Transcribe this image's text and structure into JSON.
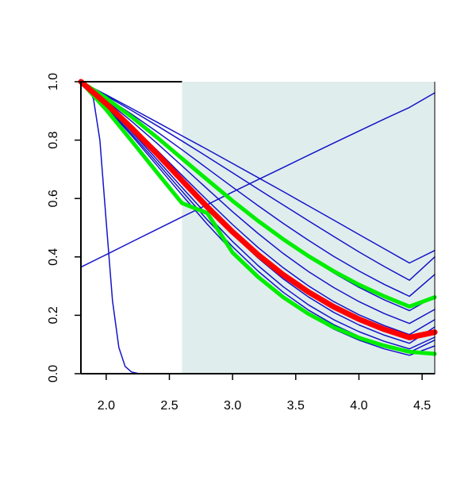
{
  "chart_data": {
    "type": "line",
    "title": "",
    "xlabel": "",
    "ylabel": "",
    "xlim": [
      1.8,
      4.6
    ],
    "ylim": [
      0.0,
      1.0
    ],
    "grid": false,
    "x_ticks": [
      "2.0",
      "2.5",
      "3.0",
      "3.5",
      "4.0",
      "4.5"
    ],
    "y_ticks": [
      "0.0",
      "0.2",
      "0.4",
      "0.6",
      "0.8",
      "1.0"
    ],
    "shaded_region": {
      "x_from": 2.6,
      "x_to": 4.6,
      "color": "#e0eded"
    },
    "colors": {
      "blue": "#1414c8",
      "red": "#ff0000",
      "green": "#00ee00",
      "axis": "#000000"
    },
    "x": [
      1.8,
      2.0,
      2.2,
      2.4,
      2.6,
      2.8,
      3.0,
      3.2,
      3.4,
      3.6,
      3.8,
      4.0,
      4.2,
      4.4,
      4.6
    ],
    "series": [
      {
        "color": "blue",
        "width": 1.5,
        "values": [
          1.0,
          0.955,
          0.909,
          0.862,
          0.815,
          0.768,
          0.72,
          0.672,
          0.624,
          0.575,
          0.526,
          0.477,
          0.428,
          0.379,
          0.422
        ]
      },
      {
        "color": "blue",
        "width": 1.5,
        "values": [
          1.0,
          0.952,
          0.902,
          0.85,
          0.797,
          0.743,
          0.688,
          0.633,
          0.578,
          0.524,
          0.47,
          0.417,
          0.367,
          0.32,
          0.4
        ]
      },
      {
        "color": "blue",
        "width": 1.5,
        "values": [
          1.0,
          0.946,
          0.889,
          0.829,
          0.767,
          0.703,
          0.639,
          0.576,
          0.515,
          0.457,
          0.402,
          0.352,
          0.306,
          0.265,
          0.34
        ]
      },
      {
        "color": "blue",
        "width": 1.5,
        "values": [
          1.0,
          0.94,
          0.876,
          0.808,
          0.737,
          0.665,
          0.594,
          0.525,
          0.46,
          0.4,
          0.345,
          0.296,
          0.253,
          0.216,
          0.265
        ]
      },
      {
        "color": "blue",
        "width": 1.5,
        "values": [
          1.0,
          0.935,
          0.865,
          0.79,
          0.712,
          0.633,
          0.555,
          0.481,
          0.412,
          0.35,
          0.295,
          0.247,
          0.206,
          0.172,
          0.22
        ]
      },
      {
        "color": "blue",
        "width": 1.5,
        "values": [
          1.0,
          0.928,
          0.85,
          0.766,
          0.68,
          0.594,
          0.511,
          0.433,
          0.363,
          0.301,
          0.247,
          0.202,
          0.165,
          0.134,
          0.185
        ]
      },
      {
        "color": "blue",
        "width": 1.5,
        "values": [
          1.0,
          0.922,
          0.838,
          0.748,
          0.656,
          0.565,
          0.478,
          0.397,
          0.325,
          0.263,
          0.21,
          0.167,
          0.132,
          0.104,
          0.16
        ]
      },
      {
        "color": "blue",
        "width": 1.5,
        "values": [
          1.0,
          0.918,
          0.829,
          0.734,
          0.638,
          0.543,
          0.453,
          0.371,
          0.298,
          0.236,
          0.185,
          0.144,
          0.111,
          0.085,
          0.125
        ]
      },
      {
        "color": "blue",
        "width": 1.5,
        "values": [
          1.0,
          0.915,
          0.822,
          0.724,
          0.625,
          0.527,
          0.435,
          0.352,
          0.279,
          0.218,
          0.168,
          0.128,
          0.097,
          0.073,
          0.115
        ]
      },
      {
        "color": "blue",
        "width": 1.5,
        "values": [
          1.0,
          0.912,
          0.816,
          0.714,
          0.612,
          0.512,
          0.419,
          0.336,
          0.263,
          0.202,
          0.153,
          0.115,
          0.085,
          0.063,
          0.095
        ]
      },
      {
        "color": "blue",
        "width": 1.5,
        "values": [
          0.365,
          0.408,
          0.451,
          0.494,
          0.537,
          0.579,
          0.622,
          0.664,
          0.706,
          0.748,
          0.79,
          0.831,
          0.872,
          0.912,
          0.962
        ]
      },
      {
        "color": "green",
        "width": 5,
        "values": [
          1.0,
          0.944,
          0.88,
          0.81,
          0.737,
          0.664,
          0.592,
          0.524,
          0.461,
          0.403,
          0.351,
          0.305,
          0.265,
          0.23,
          0.262
        ]
      },
      {
        "color": "red",
        "width": 7,
        "values": [
          1.0,
          0.925,
          0.842,
          0.754,
          0.662,
          0.571,
          0.486,
          0.408,
          0.339,
          0.28,
          0.229,
          0.187,
          0.152,
          0.124,
          0.142
        ]
      },
      {
        "color": "green",
        "width": 5,
        "values": [
          1.0,
          0.904,
          0.798,
          0.69,
          0.584,
          0.55,
          0.415,
          0.332,
          0.262,
          0.205,
          0.159,
          0.123,
          0.096,
          0.075,
          0.068
        ]
      }
    ],
    "steep_curve": {
      "color": "blue",
      "width": 1.5,
      "x": [
        1.8,
        1.85,
        1.9,
        1.95,
        2.0,
        2.05,
        2.1,
        2.15,
        2.2,
        2.25,
        2.3,
        2.4,
        4.6
      ],
      "values": [
        1.0,
        0.99,
        0.94,
        0.8,
        0.52,
        0.25,
        0.09,
        0.025,
        0.006,
        0.001,
        0.0,
        0.0,
        0.0
      ]
    }
  }
}
